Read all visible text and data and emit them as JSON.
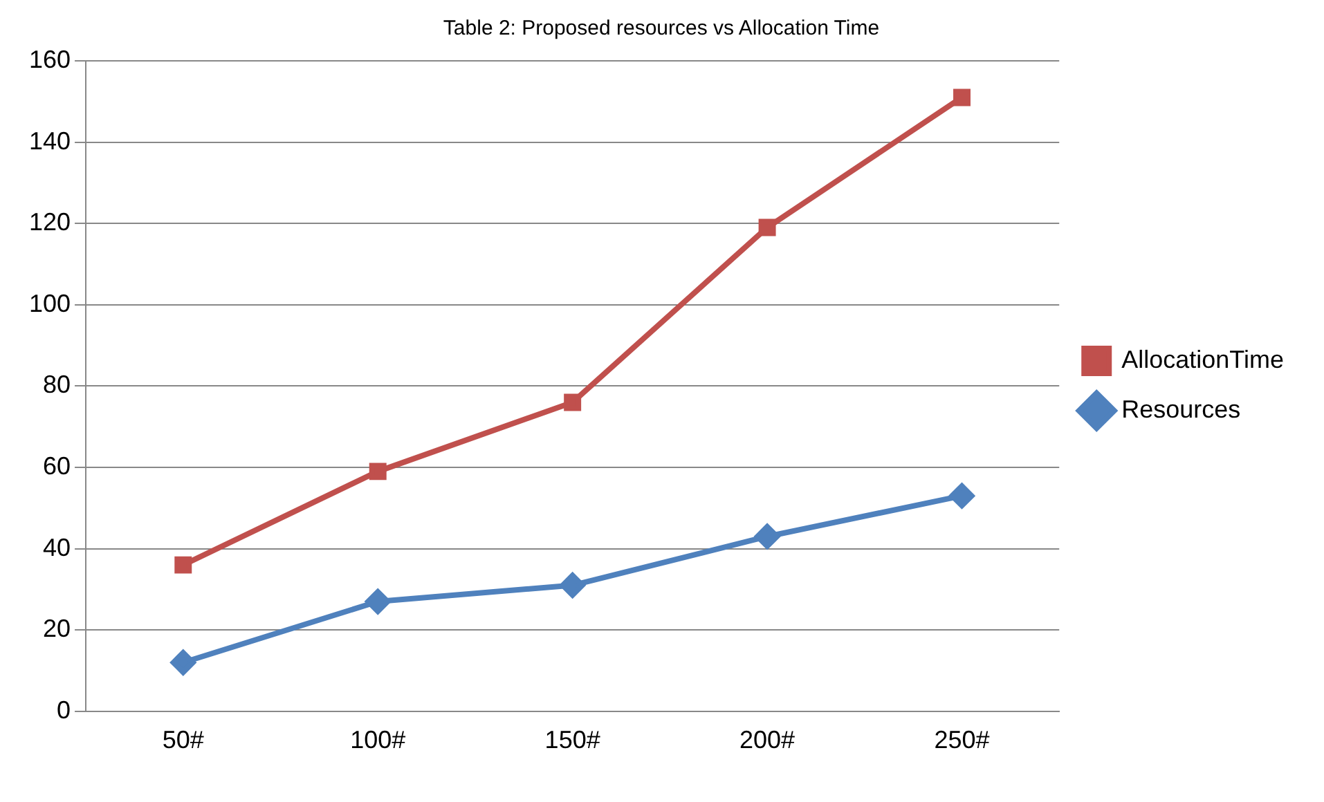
{
  "chart_data": {
    "type": "line",
    "title": "Table 2: Proposed resources vs Allocation Time",
    "categories": [
      "50#",
      "100#",
      "150#",
      "200#",
      "250#"
    ],
    "series": [
      {
        "name": "AllocationTime",
        "color": "#c0504d",
        "marker": "square",
        "values": [
          36,
          59,
          76,
          119,
          151
        ]
      },
      {
        "name": "Resources",
        "color": "#4f81bd",
        "marker": "diamond",
        "values": [
          12,
          27,
          31,
          43,
          53
        ]
      }
    ],
    "ylim": [
      0,
      160
    ],
    "yticks": [
      0,
      20,
      40,
      60,
      80,
      100,
      120,
      140,
      160
    ],
    "grid": "y",
    "legend": "right"
  }
}
